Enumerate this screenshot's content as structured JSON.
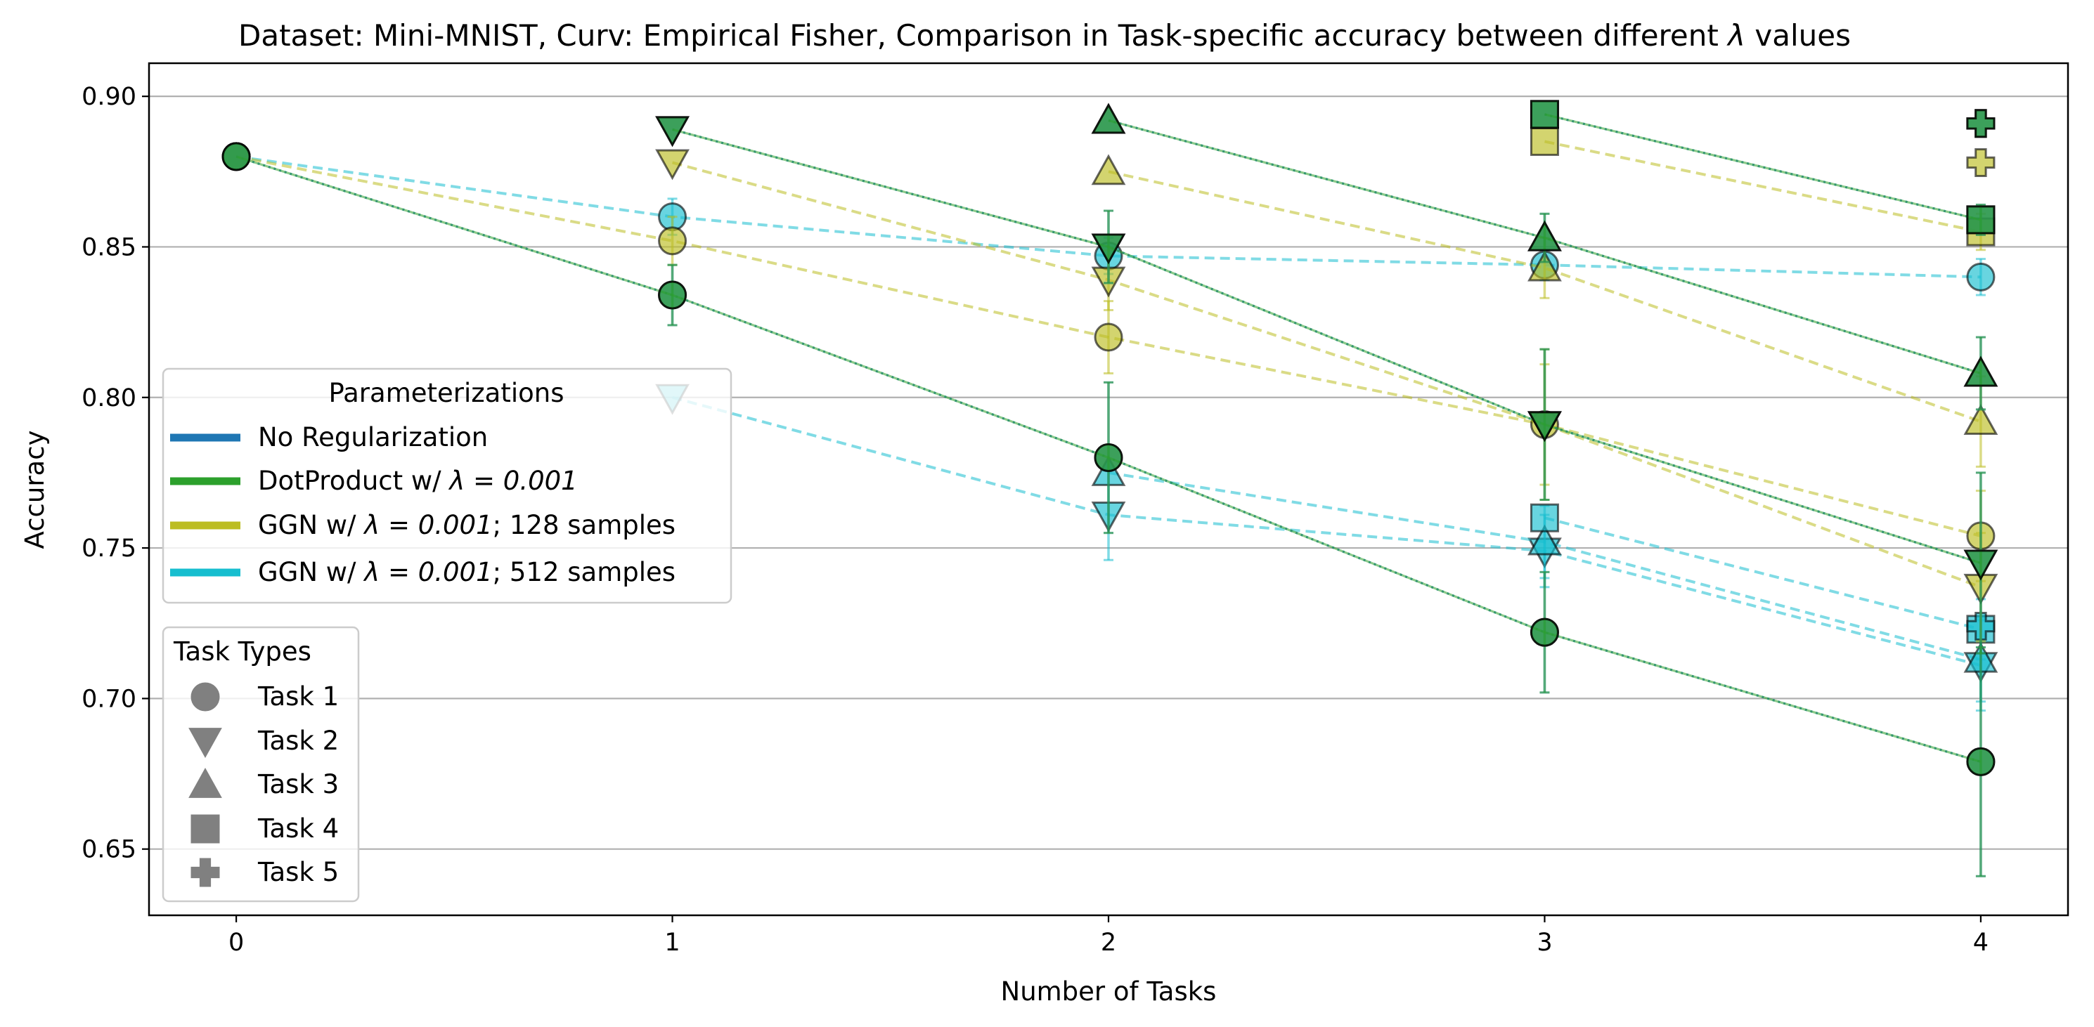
{
  "chart_data": {
    "type": "line",
    "title_prefix": "Dataset: Mini-MNIST, Curv: Empirical Fisher, Comparison in Task-specific accuracy between different ",
    "title_symbol": "λ",
    "title_suffix": " values",
    "xlabel": "Number of Tasks",
    "ylabel": "Accuracy",
    "xlim": [
      -0.2,
      4.2
    ],
    "ylim": [
      0.628,
      0.911
    ],
    "xticks": [
      0,
      1,
      2,
      3,
      4
    ],
    "xtick_labels": [
      "0",
      "1",
      "2",
      "3",
      "4"
    ],
    "yticks": [
      0.65,
      0.7,
      0.75,
      0.8,
      0.85,
      0.9
    ],
    "ytick_labels": [
      "0.65",
      "0.70",
      "0.75",
      "0.80",
      "0.85",
      "0.90"
    ],
    "grid": "horizontal",
    "colors": {
      "no_reg": "#1f77b4",
      "dot": "#2ca02c",
      "ggn128": "#bcbd22",
      "ggn512": "#17becf"
    },
    "legend_params": {
      "title": "Parameterizations",
      "placement": "center-left",
      "entries": [
        {
          "key": "no_reg",
          "label": "No Regularization"
        },
        {
          "key": "dot",
          "label_prefix": "DotProduct w/ ",
          "label_math": "λ = 0.001",
          "label_suffix": ""
        },
        {
          "key": "ggn128",
          "label_prefix": "GGN w/ ",
          "label_math": "λ = 0.001",
          "label_suffix": "; 128 samples"
        },
        {
          "key": "ggn512",
          "label_prefix": "GGN w/ ",
          "label_math": "λ = 0.001",
          "label_suffix": "; 512 samples"
        }
      ]
    },
    "legend_tasks": {
      "title": "Task Types",
      "placement": "lower-left",
      "marker_color": "#808080",
      "entries": [
        {
          "marker": "circle",
          "label": "Task 1"
        },
        {
          "marker": "triangle-down",
          "label": "Task 2"
        },
        {
          "marker": "triangle-up",
          "label": "Task 3"
        },
        {
          "marker": "square",
          "label": "Task 4"
        },
        {
          "marker": "plus",
          "label": "Task 5"
        }
      ]
    },
    "series": [
      {
        "name": "No Regularization",
        "key": "no_reg",
        "task": 1,
        "marker": "circle",
        "x": [
          0,
          1,
          2,
          3,
          4
        ],
        "y": [
          0.88,
          0.834,
          0.78,
          0.722,
          0.679
        ],
        "err": [
          0,
          0.01,
          0.025,
          0.02,
          0.038
        ]
      },
      {
        "name": "No Regularization",
        "key": "no_reg",
        "task": 2,
        "marker": "triangle-down",
        "x": [
          1,
          2,
          3,
          4
        ],
        "y": [
          0.889,
          0.85,
          0.791,
          0.745
        ],
        "err": [
          0,
          0.012,
          0.025,
          0.03
        ]
      },
      {
        "name": "No Regularization",
        "key": "no_reg",
        "task": 3,
        "marker": "triangle-up",
        "x": [
          2,
          3,
          4
        ],
        "y": [
          0.892,
          0.853,
          0.808
        ],
        "err": [
          0,
          0.008,
          0.012
        ]
      },
      {
        "name": "No Regularization",
        "key": "no_reg",
        "task": 4,
        "marker": "square",
        "x": [
          3,
          4
        ],
        "y": [
          0.894,
          0.859
        ],
        "err": [
          0,
          0.005
        ]
      },
      {
        "name": "No Regularization",
        "key": "no_reg",
        "task": 5,
        "marker": "plus",
        "x": [
          4
        ],
        "y": [
          0.891
        ],
        "err": [
          0
        ]
      },
      {
        "name": "DotProduct w/ λ=0.001",
        "key": "dot",
        "task": 1,
        "marker": "circle",
        "x": [
          0,
          1,
          2,
          3,
          4
        ],
        "y": [
          0.88,
          0.834,
          0.78,
          0.722,
          0.679
        ],
        "err": [
          0,
          0.01,
          0.025,
          0.02,
          0.038
        ]
      },
      {
        "name": "DotProduct w/ λ=0.001",
        "key": "dot",
        "task": 2,
        "marker": "triangle-down",
        "x": [
          1,
          2,
          3,
          4
        ],
        "y": [
          0.889,
          0.85,
          0.791,
          0.745
        ],
        "err": [
          0,
          0.012,
          0.025,
          0.03
        ]
      },
      {
        "name": "DotProduct w/ λ=0.001",
        "key": "dot",
        "task": 3,
        "marker": "triangle-up",
        "x": [
          2,
          3,
          4
        ],
        "y": [
          0.892,
          0.853,
          0.808
        ],
        "err": [
          0,
          0.008,
          0.012
        ]
      },
      {
        "name": "DotProduct w/ λ=0.001",
        "key": "dot",
        "task": 4,
        "marker": "square",
        "x": [
          3,
          4
        ],
        "y": [
          0.894,
          0.859
        ],
        "err": [
          0,
          0.005
        ]
      },
      {
        "name": "DotProduct w/ λ=0.001",
        "key": "dot",
        "task": 5,
        "marker": "plus",
        "x": [
          4
        ],
        "y": [
          0.891
        ],
        "err": [
          0
        ]
      },
      {
        "name": "GGN w/ λ=0.001; 128 samples",
        "key": "ggn128",
        "task": 1,
        "marker": "circle",
        "x": [
          0,
          1,
          2,
          3,
          4
        ],
        "y": [
          0.88,
          0.852,
          0.82,
          0.791,
          0.754
        ],
        "err": [
          0,
          0.008,
          0.012,
          0.025,
          0.015
        ]
      },
      {
        "name": "GGN w/ λ=0.001; 128 samples",
        "key": "ggn128",
        "task": 2,
        "marker": "triangle-down",
        "x": [
          1,
          2,
          3,
          4
        ],
        "y": [
          0.878,
          0.839,
          0.791,
          0.737
        ],
        "err": [
          0,
          0.01,
          0.02,
          0.018
        ]
      },
      {
        "name": "GGN w/ λ=0.001; 128 samples",
        "key": "ggn128",
        "task": 3,
        "marker": "triangle-up",
        "x": [
          2,
          3,
          4
        ],
        "y": [
          0.875,
          0.843,
          0.792
        ],
        "err": [
          0,
          0.01,
          0.015
        ]
      },
      {
        "name": "GGN w/ λ=0.001; 128 samples",
        "key": "ggn128",
        "task": 4,
        "marker": "square",
        "x": [
          3,
          4
        ],
        "y": [
          0.885,
          0.855
        ],
        "err": [
          0,
          0.006
        ]
      },
      {
        "name": "GGN w/ λ=0.001; 128 samples",
        "key": "ggn128",
        "task": 5,
        "marker": "plus",
        "x": [
          4
        ],
        "y": [
          0.878
        ],
        "err": [
          0
        ]
      },
      {
        "name": "GGN w/ λ=0.001; 512 samples",
        "key": "ggn512",
        "task": 1,
        "marker": "circle",
        "x": [
          0,
          1,
          2,
          3,
          4
        ],
        "y": [
          0.88,
          0.86,
          0.847,
          0.844,
          0.84
        ],
        "err": [
          0,
          0.006,
          0.006,
          0.005,
          0.006
        ]
      },
      {
        "name": "GGN w/ λ=0.001; 512 samples",
        "key": "ggn512",
        "task": 2,
        "marker": "triangle-down",
        "x": [
          1,
          2,
          3,
          4
        ],
        "y": [
          0.8,
          0.761,
          0.749,
          0.711
        ],
        "err": [
          0,
          0.015,
          0.012,
          0.015
        ]
      },
      {
        "name": "GGN w/ λ=0.001; 512 samples",
        "key": "ggn512",
        "task": 3,
        "marker": "triangle-up",
        "x": [
          2,
          3,
          4
        ],
        "y": [
          0.775,
          0.752,
          0.713
        ],
        "err": [
          0,
          0.012,
          0.014
        ]
      },
      {
        "name": "GGN w/ λ=0.001; 512 samples",
        "key": "ggn512",
        "task": 4,
        "marker": "square",
        "x": [
          3,
          4
        ],
        "y": [
          0.76,
          0.723
        ],
        "err": [
          0,
          0.01
        ]
      },
      {
        "name": "GGN w/ λ=0.001; 512 samples",
        "key": "ggn512",
        "task": 5,
        "marker": "plus",
        "x": [
          4
        ],
        "y": [
          0.724
        ],
        "err": [
          0
        ]
      }
    ]
  }
}
